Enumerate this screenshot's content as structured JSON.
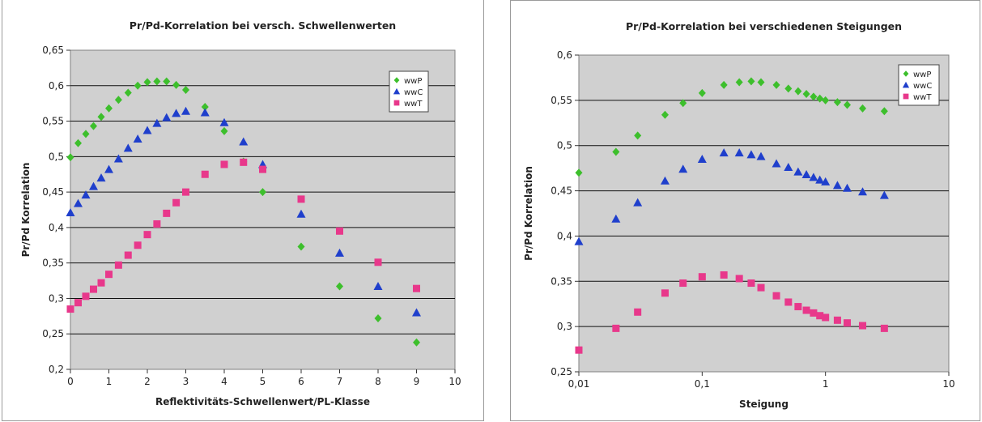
{
  "chart_data": [
    {
      "type": "scatter",
      "title": "Pr/Pd-Korrelation bei versch. Schwellenwerten",
      "xlabel": "Reflektivitäts-Schwellenwert/PL-Klasse",
      "ylabel": "Pr/Pd Korrelation",
      "xlim": [
        0,
        10
      ],
      "ylim": [
        0.2,
        0.65
      ],
      "x_scale": "linear",
      "x_ticks": [
        0,
        1,
        2,
        3,
        4,
        5,
        6,
        7,
        8,
        9,
        10
      ],
      "x_tick_labels": [
        "0",
        "1",
        "2",
        "3",
        "4",
        "5",
        "6",
        "7",
        "8",
        "9",
        "10"
      ],
      "y_ticks": [
        0.2,
        0.25,
        0.3,
        0.35,
        0.4,
        0.45,
        0.5,
        0.55,
        0.6,
        0.65
      ],
      "y_tick_labels": [
        "0,2",
        "0,25",
        "0,3",
        "0,35",
        "0,4",
        "0,45",
        "0,5",
        "0,55",
        "0,6",
        "0,65"
      ],
      "grid": "horizontal",
      "plot_background": "#d0d0d0",
      "legend_position": "top-right",
      "series": [
        {
          "name": "wwP",
          "marker": "diamond",
          "color": "#3dbf2c",
          "x": [
            0,
            0.2,
            0.4,
            0.6,
            0.8,
            1.0,
            1.25,
            1.5,
            1.75,
            2.0,
            2.25,
            2.5,
            2.75,
            3.0,
            3.5,
            4.0,
            4.5,
            5.0,
            6.0,
            7.0,
            8.0,
            9.0
          ],
          "y": [
            0.499,
            0.519,
            0.532,
            0.543,
            0.556,
            0.568,
            0.58,
            0.59,
            0.6,
            0.605,
            0.606,
            0.606,
            0.601,
            0.594,
            0.57,
            0.536,
            0.493,
            0.45,
            0.373,
            0.317,
            0.272,
            0.238
          ]
        },
        {
          "name": "wwC",
          "marker": "triangle",
          "color": "#1f3fcc",
          "x": [
            0,
            0.2,
            0.4,
            0.6,
            0.8,
            1.0,
            1.25,
            1.5,
            1.75,
            2.0,
            2.25,
            2.5,
            2.75,
            3.0,
            3.5,
            4.0,
            4.5,
            5.0,
            6.0,
            7.0,
            8.0,
            9.0
          ],
          "y": [
            0.421,
            0.434,
            0.446,
            0.458,
            0.47,
            0.482,
            0.497,
            0.512,
            0.525,
            0.537,
            0.547,
            0.555,
            0.561,
            0.564,
            0.562,
            0.548,
            0.521,
            0.489,
            0.419,
            0.364,
            0.317,
            0.28
          ]
        },
        {
          "name": "wwT",
          "marker": "square",
          "color": "#e8388b",
          "x": [
            0,
            0.2,
            0.4,
            0.6,
            0.8,
            1.0,
            1.25,
            1.5,
            1.75,
            2.0,
            2.25,
            2.5,
            2.75,
            3.0,
            3.5,
            4.0,
            4.5,
            5.0,
            6.0,
            7.0,
            8.0,
            9.0
          ],
          "y": [
            0.285,
            0.294,
            0.303,
            0.313,
            0.322,
            0.334,
            0.347,
            0.361,
            0.375,
            0.39,
            0.405,
            0.42,
            0.435,
            0.45,
            0.475,
            0.489,
            0.492,
            0.482,
            0.44,
            0.395,
            0.351,
            0.314
          ]
        }
      ]
    },
    {
      "type": "scatter",
      "title": "Pr/Pd-Korrelation bei verschiedenen Steigungen",
      "xlabel": "Steigung",
      "ylabel": "Pr/Pd Korrelation",
      "xlim": [
        0.01,
        10
      ],
      "ylim": [
        0.25,
        0.6
      ],
      "x_scale": "log",
      "x_ticks": [
        0.01,
        0.1,
        1,
        10
      ],
      "x_tick_labels": [
        "0,01",
        "0,1",
        "1",
        "10"
      ],
      "y_ticks": [
        0.25,
        0.3,
        0.35,
        0.4,
        0.45,
        0.5,
        0.55,
        0.6
      ],
      "y_tick_labels": [
        "0,25",
        "0,3",
        "0,35",
        "0,4",
        "0,45",
        "0,5",
        "0,55",
        "0,6"
      ],
      "grid": "horizontal",
      "plot_background": "#d0d0d0",
      "legend_position": "top-right",
      "series": [
        {
          "name": "wwP",
          "marker": "diamond",
          "color": "#3dbf2c",
          "x": [
            0.01,
            0.02,
            0.03,
            0.05,
            0.07,
            0.1,
            0.15,
            0.2,
            0.25,
            0.3,
            0.4,
            0.5,
            0.6,
            0.7,
            0.8,
            0.9,
            1.0,
            1.25,
            1.5,
            2.0,
            3.0
          ],
          "y": [
            0.47,
            0.493,
            0.511,
            0.534,
            0.547,
            0.558,
            0.567,
            0.57,
            0.571,
            0.57,
            0.567,
            0.563,
            0.56,
            0.557,
            0.554,
            0.552,
            0.55,
            0.548,
            0.545,
            0.541,
            0.538
          ]
        },
        {
          "name": "wwC",
          "marker": "triangle",
          "color": "#1f3fcc",
          "x": [
            0.01,
            0.02,
            0.03,
            0.05,
            0.07,
            0.1,
            0.15,
            0.2,
            0.25,
            0.3,
            0.4,
            0.5,
            0.6,
            0.7,
            0.8,
            0.9,
            1.0,
            1.25,
            1.5,
            2.0,
            3.0
          ],
          "y": [
            0.394,
            0.419,
            0.437,
            0.461,
            0.474,
            0.485,
            0.492,
            0.492,
            0.49,
            0.488,
            0.48,
            0.476,
            0.471,
            0.468,
            0.465,
            0.462,
            0.46,
            0.456,
            0.453,
            0.449,
            0.445
          ]
        },
        {
          "name": "wwT",
          "marker": "square",
          "color": "#e8388b",
          "x": [
            0.01,
            0.02,
            0.03,
            0.05,
            0.07,
            0.1,
            0.15,
            0.2,
            0.25,
            0.3,
            0.4,
            0.5,
            0.6,
            0.7,
            0.8,
            0.9,
            1.0,
            1.25,
            1.5,
            2.0,
            3.0
          ],
          "y": [
            0.274,
            0.298,
            0.316,
            0.337,
            0.348,
            0.355,
            0.357,
            0.353,
            0.348,
            0.343,
            0.334,
            0.327,
            0.322,
            0.318,
            0.315,
            0.312,
            0.31,
            0.307,
            0.304,
            0.301,
            0.298
          ]
        }
      ]
    }
  ]
}
